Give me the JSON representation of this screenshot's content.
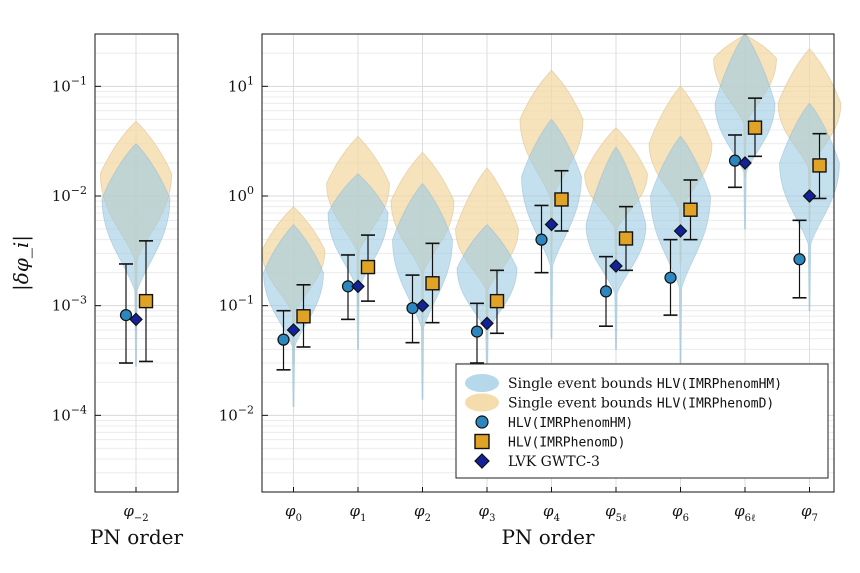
{
  "chart_data": [
    {
      "type": "violin+errorbar",
      "panel": "left",
      "ylabel": "|δφ_i|",
      "yscale": "log",
      "ylim": [
        2e-05,
        0.3
      ],
      "y_ticks": [
        {
          "value": 0.0001,
          "label": "10",
          "exp": "−4"
        },
        {
          "value": 0.001,
          "label": "10",
          "exp": "−3"
        },
        {
          "value": 0.01,
          "label": "10",
          "exp": "−2"
        },
        {
          "value": 0.1,
          "label": "10",
          "exp": "−1"
        }
      ],
      "xlabel": "PN order",
      "categories": [
        {
          "base": "φ",
          "sub": "−2"
        }
      ],
      "violins": {
        "hm": [
          {
            "top": 0.03,
            "wide": 0.0095,
            "bottom": 0.00028
          }
        ],
        "d": [
          {
            "top": 0.048,
            "wide": 0.016,
            "bottom": 0.0006
          }
        ]
      },
      "points": {
        "hm": [
          {
            "value": 0.00082,
            "lo": 0.0003,
            "hi": 0.0024
          }
        ],
        "d": [
          {
            "value": 0.0011,
            "lo": 0.00031,
            "hi": 0.0039
          }
        ],
        "lvk": [
          {
            "value": 0.00075
          }
        ]
      }
    },
    {
      "type": "violin+errorbar",
      "panel": "right",
      "yscale": "log",
      "ylim": [
        0.002,
        30
      ],
      "y_ticks": [
        {
          "value": 0.01,
          "label": "10",
          "exp": "−2"
        },
        {
          "value": 0.1,
          "label": "10",
          "exp": "−1"
        },
        {
          "value": 1,
          "label": "10",
          "exp": "0"
        },
        {
          "value": 10,
          "label": "10",
          "exp": "1"
        }
      ],
      "xlabel": "PN order",
      "categories": [
        {
          "base": "φ",
          "sub": "0"
        },
        {
          "base": "φ",
          "sub": "1"
        },
        {
          "base": "φ",
          "sub": "2"
        },
        {
          "base": "φ",
          "sub": "3"
        },
        {
          "base": "φ",
          "sub": "4"
        },
        {
          "base": "φ",
          "sub": "5ℓ"
        },
        {
          "base": "φ",
          "sub": "6"
        },
        {
          "base": "φ",
          "sub": "6ℓ"
        },
        {
          "base": "φ",
          "sub": "7"
        }
      ],
      "violins": {
        "hm": [
          {
            "top": 0.55,
            "wide": 0.2,
            "bottom": 0.012
          },
          {
            "top": 1.6,
            "wide": 0.7,
            "bottom": 0.04
          },
          {
            "top": 1.3,
            "wide": 0.4,
            "bottom": 0.014
          },
          {
            "top": 0.55,
            "wide": 0.22,
            "bottom": 0.02
          },
          {
            "top": 5.0,
            "wide": 1.5,
            "bottom": 0.05
          },
          {
            "top": 2.8,
            "wide": 0.55,
            "bottom": 0.04
          },
          {
            "top": 3.5,
            "wide": 1.0,
            "bottom": 0.03
          },
          {
            "top": 30.0,
            "wide": 7.0,
            "bottom": 0.5
          },
          {
            "top": 7.0,
            "wide": 2.0,
            "bottom": 0.09
          }
        ],
        "d": [
          {
            "top": 0.8,
            "wide": 0.32,
            "bottom": 0.03
          },
          {
            "top": 3.5,
            "wide": 1.3,
            "bottom": 0.1
          },
          {
            "top": 2.5,
            "wide": 0.9,
            "bottom": 0.06
          },
          {
            "top": 1.8,
            "wide": 0.5,
            "bottom": 0.05
          },
          {
            "top": 14.0,
            "wide": 5.0,
            "bottom": 0.25
          },
          {
            "top": 4.2,
            "wide": 1.6,
            "bottom": 0.2
          },
          {
            "top": 10.0,
            "wide": 3.0,
            "bottom": 0.25
          },
          {
            "top": 30.0,
            "wide": 18.0,
            "bottom": 1.5
          },
          {
            "top": 22.0,
            "wide": 7.0,
            "bottom": 0.6
          }
        ]
      },
      "points": {
        "hm": [
          {
            "value": 0.049,
            "lo": 0.026,
            "hi": 0.09
          },
          {
            "value": 0.15,
            "lo": 0.075,
            "hi": 0.29
          },
          {
            "value": 0.095,
            "lo": 0.046,
            "hi": 0.19
          },
          {
            "value": 0.058,
            "lo": 0.03,
            "hi": 0.105
          },
          {
            "value": 0.4,
            "lo": 0.2,
            "hi": 0.82
          },
          {
            "value": 0.135,
            "lo": 0.065,
            "hi": 0.28
          },
          {
            "value": 0.18,
            "lo": 0.082,
            "hi": 0.4
          },
          {
            "value": 2.1,
            "lo": 1.2,
            "hi": 3.6
          },
          {
            "value": 0.265,
            "lo": 0.118,
            "hi": 0.6
          }
        ],
        "d": [
          {
            "value": 0.08,
            "lo": 0.042,
            "hi": 0.155
          },
          {
            "value": 0.225,
            "lo": 0.11,
            "hi": 0.44
          },
          {
            "value": 0.16,
            "lo": 0.07,
            "hi": 0.37
          },
          {
            "value": 0.11,
            "lo": 0.056,
            "hi": 0.21
          },
          {
            "value": 0.93,
            "lo": 0.48,
            "hi": 1.7
          },
          {
            "value": 0.41,
            "lo": 0.21,
            "hi": 0.8
          },
          {
            "value": 0.75,
            "lo": 0.4,
            "hi": 1.4
          },
          {
            "value": 4.2,
            "lo": 2.3,
            "hi": 7.8
          },
          {
            "value": 1.9,
            "lo": 0.95,
            "hi": 3.7
          }
        ],
        "lvk": [
          {
            "value": 0.06
          },
          {
            "value": 0.15
          },
          {
            "value": 0.1
          },
          {
            "value": 0.069
          },
          {
            "value": 0.55
          },
          {
            "value": 0.23
          },
          {
            "value": 0.48
          },
          {
            "value": 2.0
          },
          {
            "value": 1.0
          }
        ]
      }
    }
  ],
  "colors": {
    "hm_violin": "#9ccbe3",
    "d_violin": "#f3d8a4",
    "hm_marker": "#2b87bd",
    "d_marker": "#e0a326",
    "lvk_marker": "#12239a"
  },
  "legend": {
    "items": [
      {
        "key": "hm_violin",
        "prefix": "Single event bounds ",
        "code": "HLV(IMRPhenomHM)"
      },
      {
        "key": "d_violin",
        "prefix": "Single event bounds ",
        "code": "HLV(IMRPhenomD)"
      },
      {
        "key": "hm_marker",
        "prefix": "",
        "code": "HLV(IMRPhenomHM)"
      },
      {
        "key": "d_marker",
        "prefix": "",
        "code": "HLV(IMRPhenomD)"
      },
      {
        "key": "lvk_marker",
        "prefix": "LVK GWTC-3",
        "code": ""
      }
    ]
  }
}
